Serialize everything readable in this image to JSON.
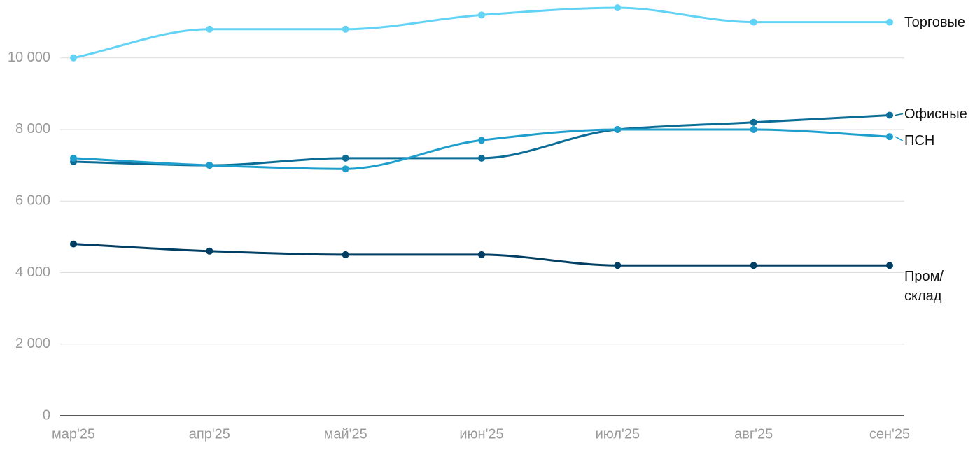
{
  "chart_data": {
    "type": "line",
    "categories": [
      "мар'25",
      "апр'25",
      "май'25",
      "июн'25",
      "июл'25",
      "авг'25",
      "сен'25"
    ],
    "series": [
      {
        "name": "Торговые",
        "color": "#62d2f5",
        "values": [
          10000,
          10800,
          10800,
          11200,
          11400,
          11000,
          11000
        ]
      },
      {
        "name": "Офисные",
        "color": "#0b6d96",
        "values": [
          7100,
          7000,
          7200,
          7200,
          8000,
          8200,
          8400
        ]
      },
      {
        "name": "ПСН",
        "color": "#1e9ecd",
        "values": [
          7200,
          7000,
          6900,
          7700,
          8000,
          8000,
          7800
        ]
      },
      {
        "name": "Пром/ склад",
        "color": "#003f63",
        "values": [
          4800,
          4600,
          4500,
          4500,
          4200,
          4200,
          4200
        ]
      }
    ],
    "ylim": [
      0,
      11500
    ],
    "yticks": [
      0,
      {
        "value": 2000,
        "label": "2 000"
      },
      {
        "value": 4000,
        "label": "4 000"
      },
      {
        "value": 6000,
        "label": "6 000"
      },
      {
        "value": 8000,
        "label": "8 000"
      },
      {
        "value": 10000,
        "label": "10 000"
      }
    ],
    "grid": true
  }
}
